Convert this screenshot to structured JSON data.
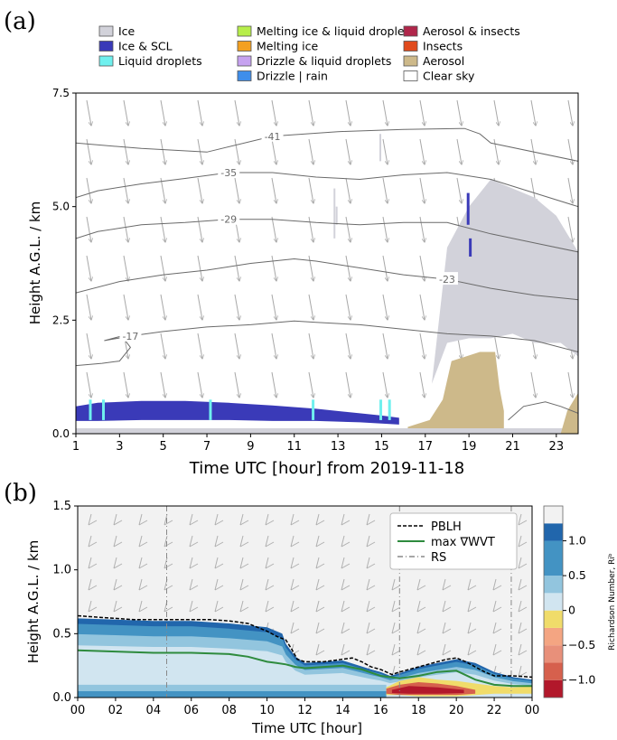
{
  "panel_a_label": "(a)",
  "panel_b_label": "(b)",
  "colors": {
    "ice": "#d2d2da",
    "ice_scl": "#3a3ab8",
    "liquid": "#6ff0ee",
    "aerosol": "#cdb98a",
    "insects": "#e04a1c",
    "aerosol_insects": "#b0264a",
    "melting_liquid": "#b7ee4a",
    "melting": "#f4a020",
    "drizzle_liquid": "#c6a2f0",
    "drizzle_rain": "#3f8eea",
    "clear": "#ffffff",
    "pblh": "#000000",
    "wvt": "#2e8b3e",
    "rs": "#888888"
  },
  "chart_data": [
    {
      "type": "heatmap",
      "title": "",
      "xlabel": "Time UTC [hour] from 2019-11-18",
      "ylabel": "Height A.G.L. / km",
      "xlim": [
        1,
        24
      ],
      "ylim": [
        0,
        7.5
      ],
      "xticks": [
        "1",
        "3",
        "5",
        "7",
        "9",
        "11",
        "13",
        "15",
        "17",
        "19",
        "21",
        "23"
      ],
      "yticks": [
        "0.0",
        "2.5",
        "5.0",
        "7.5"
      ],
      "legend": [
        {
          "label": "Ice",
          "color": "#d2d2da"
        },
        {
          "label": "Ice & SCL",
          "color": "#3a3ab8"
        },
        {
          "label": "Liquid droplets",
          "color": "#6ff0ee"
        },
        {
          "label": "Melting ice & liquid droples",
          "color": "#b7ee4a"
        },
        {
          "label": "Melting ice",
          "color": "#f4a020"
        },
        {
          "label": "Drizzle & liquid droplets",
          "color": "#c6a2f0"
        },
        {
          "label": "Drizzle | rain",
          "color": "#3f8eea"
        },
        {
          "label": "Aerosol & insects",
          "color": "#b0264a"
        },
        {
          "label": "Insects",
          "color": "#e04a1c"
        },
        {
          "label": "Aerosol",
          "color": "#cdb98a"
        },
        {
          "label": "Clear sky",
          "color": "#ffffff"
        }
      ],
      "contours": [
        {
          "label": "-41",
          "x": [
            1,
            4,
            7,
            10,
            13,
            16,
            18.8,
            19.5,
            20,
            24
          ],
          "y": [
            6.4,
            6.28,
            6.2,
            6.55,
            6.65,
            6.7,
            6.72,
            6.6,
            6.4,
            6.0
          ]
        },
        {
          "label": "-35",
          "x": [
            1,
            2,
            4,
            6,
            8,
            10,
            12,
            14,
            16,
            18,
            20,
            22,
            24
          ],
          "y": [
            5.2,
            5.35,
            5.5,
            5.62,
            5.75,
            5.75,
            5.65,
            5.6,
            5.7,
            5.75,
            5.6,
            5.3,
            5.0
          ]
        },
        {
          "label": "-29",
          "x": [
            1,
            2,
            4,
            6,
            8,
            10,
            12,
            14,
            16,
            18,
            20,
            22,
            24
          ],
          "y": [
            4.3,
            4.45,
            4.6,
            4.65,
            4.72,
            4.72,
            4.65,
            4.6,
            4.65,
            4.65,
            4.4,
            4.2,
            4.0
          ]
        },
        {
          "label": "-23",
          "x": [
            1,
            3,
            5,
            7,
            9,
            11,
            12,
            14,
            16,
            18,
            20,
            22,
            24
          ],
          "y": [
            3.1,
            3.35,
            3.5,
            3.6,
            3.75,
            3.85,
            3.8,
            3.65,
            3.5,
            3.4,
            3.2,
            3.05,
            2.95
          ]
        },
        {
          "label": "-17",
          "x": [
            1,
            2.2,
            3,
            3.5,
            3.1,
            2.3,
            3.5,
            5,
            7,
            9,
            11,
            12,
            14,
            16,
            18,
            20,
            22,
            24
          ],
          "y": [
            1.5,
            1.55,
            1.6,
            1.9,
            2.15,
            2.05,
            2.15,
            2.25,
            2.35,
            2.4,
            2.48,
            2.45,
            2.4,
            2.3,
            2.2,
            2.15,
            2.05,
            1.8
          ]
        },
        {
          "label": "",
          "x": [
            20.8,
            21.5,
            22.5,
            23.2,
            24
          ],
          "y": [
            0.3,
            0.6,
            0.7,
            0.6,
            0.45
          ]
        }
      ],
      "regions": [
        {
          "class": "Ice",
          "x": [
            17.3,
            18,
            19,
            20,
            21,
            22,
            23,
            24,
            24,
            23.2,
            22,
            21,
            20,
            19,
            18,
            17.3
          ],
          "y": [
            1.1,
            4.1,
            5.0,
            5.6,
            5.4,
            5.2,
            4.8,
            4.0,
            1.7,
            2.0,
            2.0,
            2.2,
            2.1,
            2.1,
            2.0,
            1.1
          ]
        },
        {
          "class": "Aerosol",
          "x": [
            16.2,
            17.2,
            17.8,
            18.2,
            19.5,
            20.2,
            20.4,
            20.6,
            20.6,
            16.2
          ],
          "y": [
            0.15,
            0.3,
            0.75,
            1.6,
            1.8,
            1.8,
            1.0,
            0.5,
            0.0,
            0.0
          ]
        },
        {
          "class": "Ice & SCL",
          "x": [
            1,
            2,
            4,
            6,
            8,
            10,
            12,
            14,
            15,
            15.8,
            15.8,
            14,
            12,
            10,
            8,
            6,
            4,
            2,
            1
          ],
          "y": [
            0.6,
            0.68,
            0.72,
            0.72,
            0.68,
            0.62,
            0.55,
            0.45,
            0.4,
            0.35,
            0.2,
            0.25,
            0.28,
            0.28,
            0.3,
            0.3,
            0.3,
            0.28,
            0.28
          ]
        },
        {
          "class": "Ice",
          "x": [
            1,
            24,
            24,
            1
          ],
          "y": [
            0,
            0,
            0.12,
            0.12
          ]
        }
      ]
    },
    {
      "type": "heatmap",
      "title": "",
      "xlabel": "Time UTC [hour]",
      "ylabel": "Height A.G.L. / km",
      "xlim": [
        0,
        24
      ],
      "ylim": [
        0,
        1.5
      ],
      "xticks": [
        "00",
        "02",
        "04",
        "06",
        "08",
        "10",
        "12",
        "14",
        "16",
        "18",
        "20",
        "22",
        "00"
      ],
      "yticks": [
        "0.0",
        "0.5",
        "1.0",
        "1.5"
      ],
      "colorbar": {
        "label": "Richardson Number, Riᵇ",
        "ticks": [
          "1.0",
          "0.5",
          "0",
          "−0.5",
          "−1.0"
        ],
        "tick_values": [
          1.0,
          0.5,
          0.0,
          -0.5,
          -1.0
        ],
        "range": [
          -1.25,
          1.5
        ],
        "colors": [
          "#b2182b",
          "#d6604d",
          "#f4a582",
          "#f0dc6a",
          "#d1e5f0",
          "#92c5de",
          "#4393c3",
          "#2166ac",
          "#f2f2f2"
        ]
      },
      "legend": [
        {
          "label": "PBLH",
          "style": "dashed",
          "color": "#000000"
        },
        {
          "label": "max ∇WVT",
          "style": "solid",
          "color": "#2e8b3e"
        },
        {
          "label": "RS",
          "style": "dashdot",
          "color": "#888888"
        }
      ],
      "pblh": {
        "x": [
          0,
          1,
          2,
          3,
          4,
          5,
          6,
          7,
          8,
          9,
          9.5,
          10,
          10.5,
          11,
          11.3,
          11.6,
          12,
          13,
          14,
          14.5,
          15,
          15.5,
          16,
          16.3,
          16.6,
          17,
          18,
          19,
          19.5,
          20,
          20.5,
          21,
          21.5,
          22,
          23,
          24
        ],
        "y": [
          0.64,
          0.63,
          0.62,
          0.61,
          0.61,
          0.61,
          0.61,
          0.61,
          0.6,
          0.58,
          0.55,
          0.52,
          0.48,
          0.45,
          0.38,
          0.3,
          0.28,
          0.28,
          0.3,
          0.31,
          0.28,
          0.24,
          0.22,
          0.2,
          0.18,
          0.2,
          0.24,
          0.28,
          0.3,
          0.31,
          0.28,
          0.24,
          0.2,
          0.17,
          0.17,
          0.16
        ]
      },
      "wvt": {
        "x": [
          0,
          2,
          4,
          6,
          8,
          9,
          10,
          10.5,
          11,
          11.5,
          12,
          13,
          14,
          15,
          16,
          17,
          18,
          19,
          20,
          21,
          22,
          23,
          24
        ],
        "y": [
          0.37,
          0.36,
          0.35,
          0.35,
          0.34,
          0.32,
          0.28,
          0.27,
          0.26,
          0.24,
          0.23,
          0.24,
          0.25,
          0.22,
          0.17,
          0.15,
          0.17,
          0.2,
          0.21,
          0.14,
          0.1,
          0.09,
          0.09
        ]
      },
      "rs_times": [
        4.7,
        17.0,
        22.9
      ],
      "stable_top": {
        "x": [
          0,
          2,
          4,
          6,
          8,
          10,
          10.8,
          11,
          11.5,
          12,
          14,
          15.5,
          16,
          16.5,
          17,
          18,
          19,
          20,
          21,
          22,
          23,
          24
        ],
        "y": [
          0.62,
          0.61,
          0.6,
          0.6,
          0.58,
          0.55,
          0.5,
          0.42,
          0.32,
          0.27,
          0.29,
          0.22,
          0.2,
          0.17,
          0.19,
          0.24,
          0.27,
          0.3,
          0.27,
          0.2,
          0.16,
          0.14
        ]
      },
      "unstable_region": {
        "x": [
          16.3,
          17,
          18,
          19,
          20,
          21,
          22,
          23,
          24,
          24,
          23,
          22,
          21,
          20,
          19,
          18,
          17,
          16.3
        ],
        "y": [
          0.02,
          0.02,
          0.01,
          0.01,
          0.01,
          0.02,
          0.03,
          0.03,
          0.03,
          0.09,
          0.08,
          0.09,
          0.11,
          0.13,
          0.14,
          0.16,
          0.13,
          0.08
        ]
      }
    }
  ]
}
